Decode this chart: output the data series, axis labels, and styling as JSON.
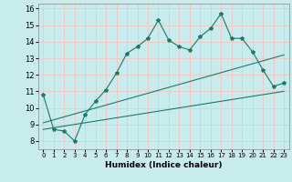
{
  "xlabel": "Humidex (Indice chaleur)",
  "ylabel": "",
  "background_color": "#c8ecec",
  "grid_color": "#f0c8c8",
  "line_color": "#1a7a6a",
  "x_min": -0.5,
  "x_max": 23.5,
  "y_min": 7.5,
  "y_max": 16.3,
  "x_ticks": [
    0,
    1,
    2,
    3,
    4,
    5,
    6,
    7,
    8,
    9,
    10,
    11,
    12,
    13,
    14,
    15,
    16,
    17,
    18,
    19,
    20,
    21,
    22,
    23
  ],
  "y_ticks": [
    8,
    9,
    10,
    11,
    12,
    13,
    14,
    15,
    16
  ],
  "line1_x": [
    0,
    1,
    2,
    3,
    4,
    5,
    6,
    7,
    8,
    9,
    10,
    11,
    12,
    13,
    14,
    15,
    16,
    17,
    18,
    19,
    20,
    21,
    22,
    23
  ],
  "line1_y": [
    10.8,
    8.7,
    8.6,
    8.0,
    9.6,
    10.4,
    11.1,
    12.1,
    13.3,
    13.7,
    14.2,
    15.3,
    14.1,
    13.7,
    13.5,
    14.3,
    14.8,
    15.7,
    14.2,
    14.2,
    13.4,
    12.3,
    11.3,
    11.5
  ],
  "line2_x": [
    0,
    23
  ],
  "line2_y": [
    8.7,
    11.0
  ],
  "line3_x": [
    0,
    23
  ],
  "line3_y": [
    9.1,
    13.2
  ]
}
